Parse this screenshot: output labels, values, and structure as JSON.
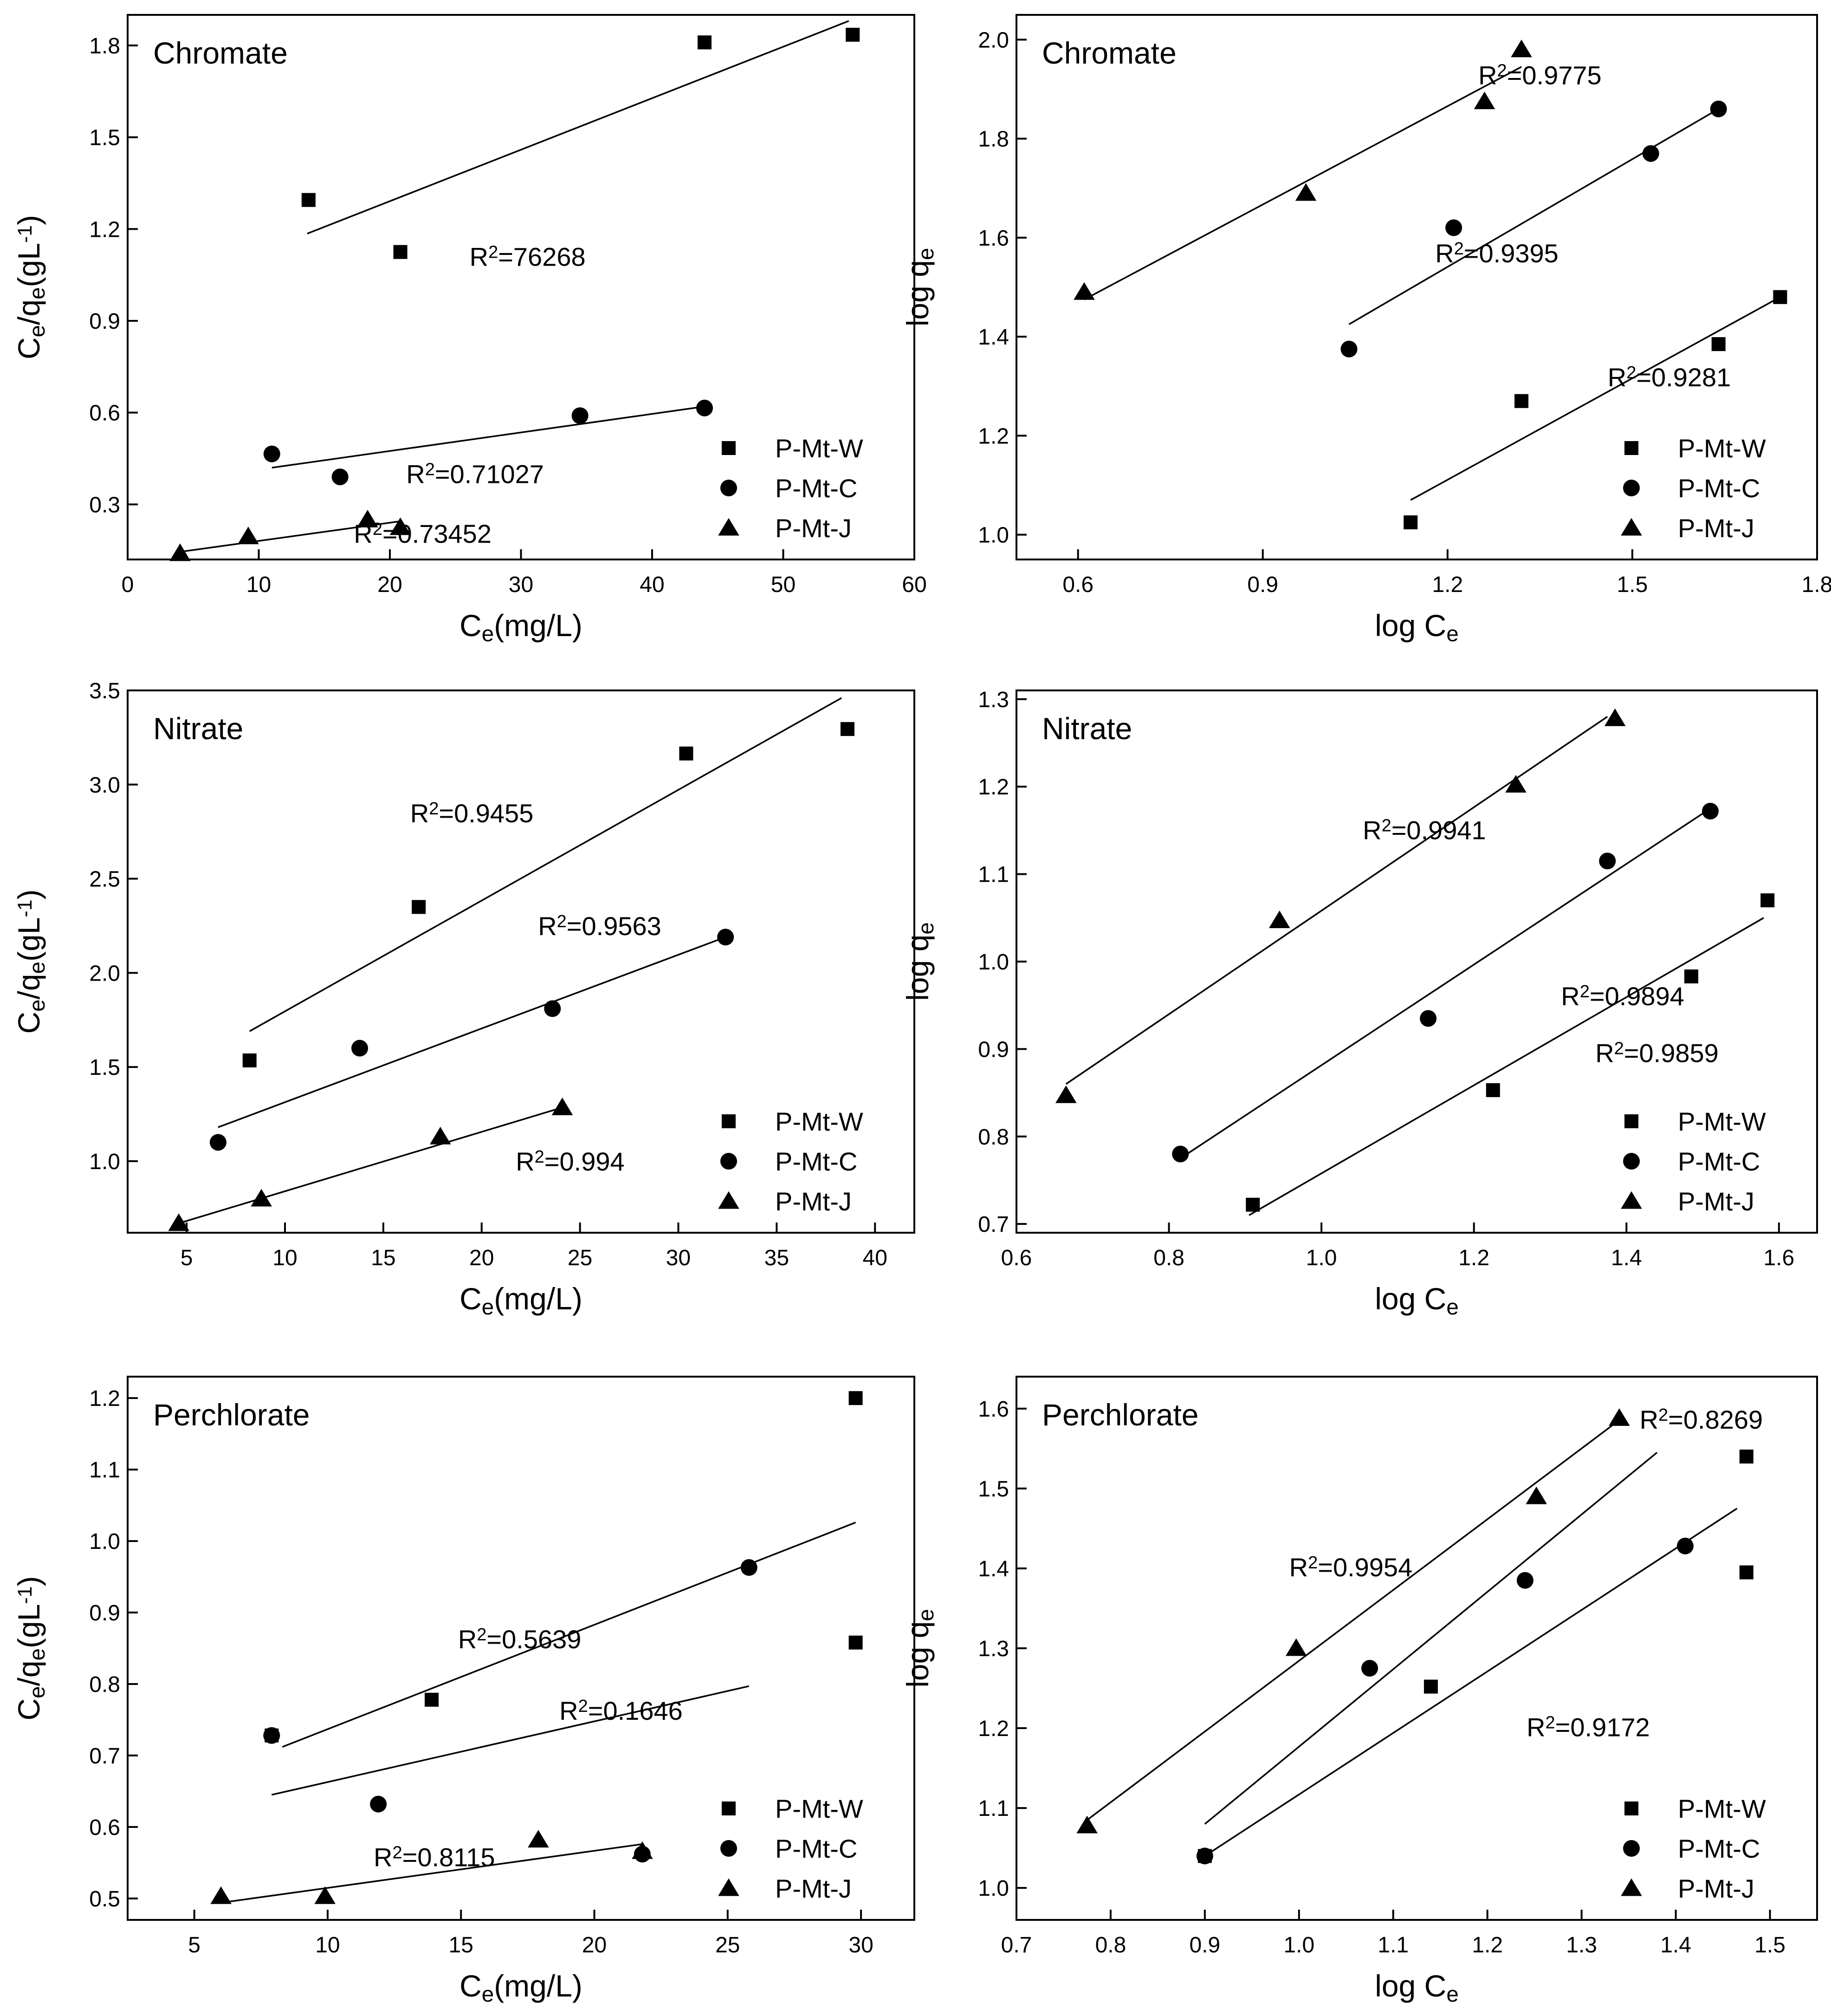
{
  "figure": {
    "legend_labels": [
      "P-Mt-W",
      "P-Mt-C",
      "P-Mt-J"
    ],
    "marker_shapes": [
      "square",
      "circle",
      "triangle"
    ],
    "color": "#000000"
  },
  "chart_data": [
    {
      "id": "langmuir-chromate",
      "type": "scatter",
      "title": "Chromate",
      "xlabel": "C_e(mg/L)",
      "ylabel": "C_e/q_e(gL^-1)",
      "xlim": [
        0,
        60
      ],
      "ylim": [
        0.12,
        1.9
      ],
      "xticks": [
        0,
        10,
        20,
        30,
        40,
        50,
        60
      ],
      "yticks": [
        0.3,
        0.6,
        0.9,
        1.2,
        1.5,
        1.8
      ],
      "tick_labels_x": [
        "0",
        "10",
        "20",
        "30",
        "40",
        "50",
        "60"
      ],
      "tick_labels_y": [
        "0.3",
        "0.6",
        "0.9",
        "1.2",
        "1.5",
        "1.8"
      ],
      "legend_position": "bottom-right",
      "series": [
        {
          "name": "P-Mt-W",
          "marker": "square",
          "x": [
            13.8,
            20.8,
            44.0,
            55.3
          ],
          "y": [
            1.295,
            1.125,
            1.81,
            1.835
          ],
          "fit": [
            [
              13.7,
              1.185
            ],
            [
              55.0,
              1.88
            ]
          ]
        },
        {
          "name": "P-Mt-C",
          "marker": "circle",
          "x": [
            11.0,
            16.2,
            34.5,
            44.0
          ],
          "y": [
            0.465,
            0.39,
            0.59,
            0.615
          ],
          "fit": [
            [
              11.0,
              0.42
            ],
            [
              44.0,
              0.62
            ]
          ]
        },
        {
          "name": "P-Mt-J",
          "marker": "triangle",
          "x": [
            4.0,
            9.2,
            18.3,
            20.8
          ],
          "y": [
            0.14,
            0.195,
            0.25,
            0.225
          ],
          "fit": [
            [
              4.0,
              0.145
            ],
            [
              20.8,
              0.245
            ]
          ]
        }
      ],
      "annotations": [
        {
          "base": "R",
          "sup": "2",
          "tail": "=76268",
          "x": 30.5,
          "y": 1.08
        },
        {
          "base": "R",
          "sup": "2",
          "tail": "=0.71027",
          "x": 26.5,
          "y": 0.37
        },
        {
          "base": "R",
          "sup": "2",
          "tail": "=0.73452",
          "x": 22.5,
          "y": 0.175
        }
      ]
    },
    {
      "id": "freundlich-chromate",
      "type": "scatter",
      "title": "Chromate",
      "xlabel": "log C_e",
      "ylabel": "log q_e",
      "xlim": [
        0.5,
        1.8
      ],
      "ylim": [
        0.95,
        2.05
      ],
      "xticks": [
        0.6,
        0.9,
        1.2,
        1.5,
        1.8
      ],
      "yticks": [
        1.0,
        1.2,
        1.4,
        1.6,
        1.8,
        2.0
      ],
      "tick_labels_x": [
        "0.6",
        "0.9",
        "1.2",
        "1.5",
        "1.8"
      ],
      "tick_labels_y": [
        "1.0",
        "1.2",
        "1.4",
        "1.6",
        "1.8",
        "2.0"
      ],
      "legend_position": "bottom-right",
      "series": [
        {
          "name": "P-Mt-W",
          "marker": "square",
          "x": [
            1.14,
            1.32,
            1.64,
            1.74
          ],
          "y": [
            1.025,
            1.27,
            1.385,
            1.48
          ],
          "fit": [
            [
              1.14,
              1.07
            ],
            [
              1.74,
              1.48
            ]
          ]
        },
        {
          "name": "P-Mt-C",
          "marker": "circle",
          "x": [
            1.04,
            1.21,
            1.53,
            1.64
          ],
          "y": [
            1.375,
            1.62,
            1.77,
            1.86
          ],
          "fit": [
            [
              1.04,
              1.425
            ],
            [
              1.64,
              1.86
            ]
          ]
        },
        {
          "name": "P-Mt-J",
          "marker": "triangle",
          "x": [
            0.61,
            0.97,
            1.26,
            1.32
          ],
          "y": [
            1.49,
            1.69,
            1.875,
            1.98
          ],
          "fit": [
            [
              0.61,
              1.475
            ],
            [
              1.32,
              1.945
            ]
          ]
        }
      ],
      "annotations": [
        {
          "base": "R",
          "sup": "2",
          "tail": "=0.9775",
          "x": 1.35,
          "y": 1.91
        },
        {
          "base": "R",
          "sup": "2",
          "tail": "=0.9395",
          "x": 1.28,
          "y": 1.55
        },
        {
          "base": "R",
          "sup": "2",
          "tail": "=0.9281",
          "x": 1.56,
          "y": 1.3
        }
      ]
    },
    {
      "id": "langmuir-nitrate",
      "type": "scatter",
      "title": "Nitrate",
      "xlabel": "C_e(mg/L)",
      "ylabel": "C_e/q_e(gL^-1)",
      "xlim": [
        2,
        42
      ],
      "ylim": [
        0.62,
        3.5
      ],
      "xticks": [
        5,
        10,
        15,
        20,
        25,
        30,
        35,
        40
      ],
      "yticks": [
        1.0,
        1.5,
        2.0,
        2.5,
        3.0,
        3.5
      ],
      "tick_labels_x": [
        "5",
        "10",
        "15",
        "20",
        "25",
        "30",
        "35",
        "40"
      ],
      "tick_labels_y": [
        "1.0",
        "1.5",
        "2.0",
        "2.5",
        "3.0",
        "3.5"
      ],
      "legend_position": "bottom-right",
      "series": [
        {
          "name": "P-Mt-W",
          "marker": "square",
          "x": [
            8.2,
            16.8,
            30.4,
            38.6
          ],
          "y": [
            1.535,
            2.35,
            3.165,
            3.295
          ],
          "fit": [
            [
              8.2,
              1.69
            ],
            [
              38.3,
              3.46
            ]
          ]
        },
        {
          "name": "P-Mt-C",
          "marker": "circle",
          "x": [
            6.6,
            13.8,
            23.6,
            32.4
          ],
          "y": [
            1.1,
            1.6,
            1.81,
            2.19
          ],
          "fit": [
            [
              6.6,
              1.18
            ],
            [
              32.4,
              2.19
            ]
          ]
        },
        {
          "name": "P-Mt-J",
          "marker": "triangle",
          "x": [
            4.6,
            8.8,
            17.9,
            24.1
          ],
          "y": [
            0.67,
            0.8,
            1.13,
            1.285
          ],
          "fit": [
            [
              4.6,
              0.67
            ],
            [
              24.1,
              1.285
            ]
          ]
        }
      ],
      "annotations": [
        {
          "base": "R",
          "sup": "2",
          "tail": "=0.9455",
          "x": 19.5,
          "y": 2.8
        },
        {
          "base": "R",
          "sup": "2",
          "tail": "=0.9563",
          "x": 26.0,
          "y": 2.2
        },
        {
          "base": "R",
          "sup": "2",
          "tail": "=0.994",
          "x": 24.5,
          "y": 0.95
        }
      ]
    },
    {
      "id": "freundlich-nitrate",
      "type": "scatter",
      "title": "Nitrate",
      "xlabel": "log C_e",
      "ylabel": "log q_e",
      "xlim": [
        0.6,
        1.65
      ],
      "ylim": [
        0.69,
        1.31
      ],
      "xticks": [
        0.6,
        0.8,
        1.0,
        1.2,
        1.4,
        1.6
      ],
      "yticks": [
        0.7,
        0.8,
        0.9,
        1.0,
        1.1,
        1.2,
        1.3
      ],
      "tick_labels_x": [
        "0.6",
        "0.8",
        "1.0",
        "1.2",
        "1.4",
        "1.6"
      ],
      "tick_labels_y": [
        "0.7",
        "0.8",
        "0.9",
        "1.0",
        "1.1",
        "1.2",
        "1.3"
      ],
      "legend_position": "bottom-right",
      "series": [
        {
          "name": "P-Mt-W",
          "marker": "square",
          "x": [
            0.91,
            1.225,
            1.485,
            1.585
          ],
          "y": [
            0.722,
            0.853,
            0.983,
            1.07
          ],
          "fit": [
            [
              0.905,
              0.71
            ],
            [
              1.58,
              1.05
            ]
          ]
        },
        {
          "name": "P-Mt-C",
          "marker": "circle",
          "x": [
            0.815,
            1.14,
            1.375,
            1.51
          ],
          "y": [
            0.78,
            0.935,
            1.115,
            1.172
          ],
          "fit": [
            [
              0.815,
              0.775
            ],
            [
              1.51,
              1.175
            ]
          ]
        },
        {
          "name": "P-Mt-J",
          "marker": "triangle",
          "x": [
            0.665,
            0.945,
            1.255,
            1.385
          ],
          "y": [
            0.847,
            1.047,
            1.202,
            1.278
          ],
          "fit": [
            [
              0.665,
              0.86
            ],
            [
              1.375,
              1.28
            ]
          ]
        }
      ],
      "annotations": [
        {
          "base": "R",
          "sup": "2",
          "tail": "=0.9941",
          "x": 1.135,
          "y": 1.14
        },
        {
          "base": "R",
          "sup": "2",
          "tail": "=0.9894",
          "x": 1.395,
          "y": 0.95
        },
        {
          "base": "R",
          "sup": "2",
          "tail": "=0.9859",
          "x": 1.44,
          "y": 0.885
        }
      ]
    },
    {
      "id": "langmuir-perchlorate",
      "type": "scatter",
      "title": "Perchlorate",
      "xlabel": "C_e(mg/L)",
      "ylabel": "C_e/q_e(gL^-1)",
      "xlim": [
        2.5,
        32
      ],
      "ylim": [
        0.47,
        1.23
      ],
      "xticks": [
        5,
        10,
        15,
        20,
        25,
        30
      ],
      "yticks": [
        0.5,
        0.6,
        0.7,
        0.8,
        0.9,
        1.0,
        1.1,
        1.2
      ],
      "tick_labels_x": [
        "5",
        "10",
        "15",
        "20",
        "25",
        "30"
      ],
      "tick_labels_y": [
        "0.5",
        "0.6",
        "0.7",
        "0.8",
        "0.9",
        "1.0",
        "1.1",
        "1.2"
      ],
      "legend_position": "bottom-right",
      "series": [
        {
          "name": "P-Mt-W",
          "marker": "square",
          "x": [
            7.9,
            13.9,
            29.8,
            29.8
          ],
          "y": [
            0.728,
            0.778,
            1.2,
            0.858
          ],
          "fit": [
            [
              8.3,
              0.712
            ],
            [
              29.8,
              1.026
            ]
          ]
        },
        {
          "name": "P-Mt-C",
          "marker": "circle",
          "x": [
            7.9,
            11.9,
            21.8,
            25.8
          ],
          "y": [
            0.728,
            0.632,
            0.562,
            0.963
          ],
          "fit": [
            [
              7.9,
              0.645
            ],
            [
              25.8,
              0.797
            ]
          ]
        },
        {
          "name": "P-Mt-J",
          "marker": "triangle",
          "x": [
            6.0,
            9.9,
            17.9,
            21.8
          ],
          "y": [
            0.503,
            0.503,
            0.582,
            0.566
          ],
          "fit": [
            [
              6.0,
              0.494
            ],
            [
              21.8,
              0.576
            ]
          ]
        }
      ],
      "annotations": [
        {
          "base": "R",
          "sup": "2",
          "tail": "=0.5639",
          "x": 17.2,
          "y": 0.85
        },
        {
          "base": "R",
          "sup": "2",
          "tail": "=0.1646",
          "x": 21.0,
          "y": 0.75
        },
        {
          "base": "R",
          "sup": "2",
          "tail": "=0.8115",
          "x": 14.0,
          "y": 0.545
        }
      ]
    },
    {
      "id": "freundlich-perchlorate",
      "type": "scatter",
      "title": "Perchlorate",
      "xlabel": "log C_e",
      "ylabel": "log q_e",
      "xlim": [
        0.7,
        1.55
      ],
      "ylim": [
        0.96,
        1.64
      ],
      "xticks": [
        0.7,
        0.8,
        0.9,
        1.0,
        1.1,
        1.2,
        1.3,
        1.4,
        1.5
      ],
      "yticks": [
        1.0,
        1.1,
        1.2,
        1.3,
        1.4,
        1.5,
        1.6
      ],
      "tick_labels_x": [
        "0.7",
        "0.8",
        "0.9",
        "1.0",
        "1.1",
        "1.2",
        "1.3",
        "1.4",
        "1.5"
      ],
      "tick_labels_y": [
        "1.0",
        "1.1",
        "1.2",
        "1.3",
        "1.4",
        "1.5",
        "1.6"
      ],
      "legend_position": "bottom-right",
      "series": [
        {
          "name": "P-Mt-W",
          "marker": "square",
          "x": [
            0.9,
            1.14,
            1.475,
            1.475
          ],
          "y": [
            1.04,
            1.252,
            1.54,
            1.395
          ],
          "fit": [
            [
              0.9,
              1.04
            ],
            [
              1.465,
              1.475
            ]
          ]
        },
        {
          "name": "P-Mt-C",
          "marker": "circle",
          "x": [
            0.9,
            1.075,
            1.24,
            1.41
          ],
          "y": [
            1.04,
            1.275,
            1.385,
            1.428
          ],
          "fit": [
            [
              0.9,
              1.08
            ],
            [
              1.38,
              1.545
            ]
          ]
        },
        {
          "name": "P-Mt-J",
          "marker": "triangle",
          "x": [
            0.775,
            0.997,
            1.252,
            1.34
          ],
          "y": [
            1.078,
            1.3,
            1.49,
            1.588
          ],
          "fit": [
            [
              0.775,
              1.085
            ],
            [
              1.345,
              1.59
            ]
          ]
        }
      ],
      "annotations": [
        {
          "base": "R",
          "sup": "2",
          "tail": "=0.8269",
          "x": 1.427,
          "y": 1.575
        },
        {
          "base": "R",
          "sup": "2",
          "tail": "=0.9954",
          "x": 1.055,
          "y": 1.39
        },
        {
          "base": "R",
          "sup": "2",
          "tail": "=0.9172",
          "x": 1.307,
          "y": 1.19
        }
      ]
    }
  ]
}
